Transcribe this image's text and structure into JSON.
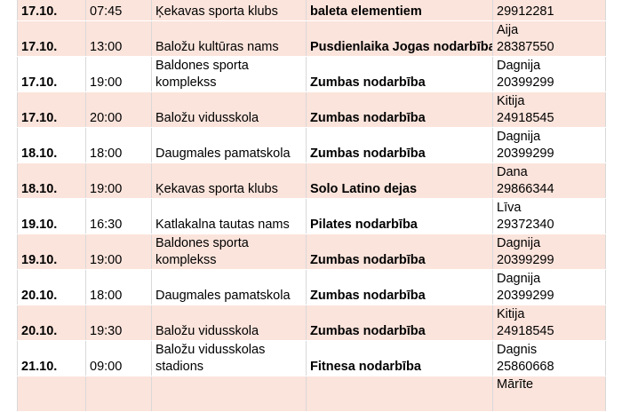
{
  "schedule": {
    "rows": [
      {
        "date": "17.10.",
        "time": "07:45",
        "place": [
          "Ķekavas sporta klubs"
        ],
        "activity": "baleta elementiem",
        "contact": [
          "29912281"
        ]
      },
      {
        "date": "17.10.",
        "time": "13:00",
        "place": [
          "Baložu kultūras nams"
        ],
        "activity": "Pusdienlaika Jogas nodarbība",
        "contact": [
          "Aija",
          "28387550"
        ]
      },
      {
        "date": "17.10.",
        "time": "19:00",
        "place": [
          "Baldones sporta",
          "komplekss"
        ],
        "activity": "Zumbas nodarbība",
        "contact": [
          "Dagnija",
          "20399299"
        ]
      },
      {
        "date": "17.10.",
        "time": "20:00",
        "place": [
          "Baložu vidusskola"
        ],
        "activity": "Zumbas nodarbība",
        "contact": [
          "Kitija",
          "24918545"
        ]
      },
      {
        "date": "18.10.",
        "time": "18:00",
        "place": [
          "Daugmales pamatskola"
        ],
        "activity": "Zumbas nodarbība",
        "contact": [
          "Dagnija",
          "20399299"
        ]
      },
      {
        "date": "18.10.",
        "time": "19:00",
        "place": [
          "Ķekavas sporta klubs"
        ],
        "activity": "Solo Latino dejas",
        "contact": [
          "Dana",
          "29866344"
        ]
      },
      {
        "date": "19.10.",
        "time": "16:30",
        "place": [
          "Katlakalna tautas nams"
        ],
        "activity": "Pilates nodarbība",
        "contact": [
          "Līva",
          "29372340"
        ]
      },
      {
        "date": "19.10.",
        "time": "19:00",
        "place": [
          "Baldones sporta",
          "komplekss"
        ],
        "activity": "Zumbas nodarbība",
        "contact": [
          "Dagnija",
          "20399299"
        ]
      },
      {
        "date": "20.10.",
        "time": "18:00",
        "place": [
          "Daugmales pamatskola"
        ],
        "activity": "Zumbas nodarbība",
        "contact": [
          "Dagnija",
          "20399299"
        ]
      },
      {
        "date": "20.10.",
        "time": "19:30",
        "place": [
          "Baložu vidusskola"
        ],
        "activity": "Zumbas nodarbība",
        "contact": [
          "Kitija",
          "24918545"
        ]
      },
      {
        "date": "21.10.",
        "time": "09:00",
        "place": [
          "Baložu vidusskolas",
          "stadions"
        ],
        "activity": "Fitnesa nodarbība",
        "contact": [
          "Dagnis",
          "25860668"
        ]
      },
      {
        "date": "",
        "time": "",
        "place": [
          ""
        ],
        "activity": "",
        "contact": [
          "Mārīte"
        ]
      }
    ]
  },
  "colors": {
    "shade": "#fbe4dc",
    "plain": "#ffffff",
    "border": "#d9d9d9"
  }
}
